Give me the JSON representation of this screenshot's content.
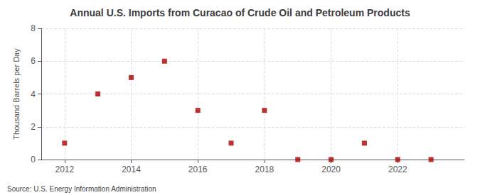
{
  "chart_data": {
    "type": "scatter",
    "title": "Annual U.S. Imports from Curacao of Crude Oil and Petroleum Products",
    "ylabel": "Thousand Barrels per Day",
    "annotations": [
      "Source: U.S. Energy Information Administration"
    ],
    "x": [
      2012,
      2013,
      2014,
      2015,
      2016,
      2017,
      2018,
      2019,
      2020,
      2021,
      2022,
      2023
    ],
    "values": [
      1,
      4,
      5,
      6,
      3,
      1,
      3,
      0,
      0,
      1,
      0,
      0
    ],
    "color": "#aa0000",
    "marker": "square",
    "xlim": [
      2011.3,
      2024.0
    ],
    "xticks": [
      2012,
      2014,
      2016,
      2018,
      2020,
      2022
    ],
    "ylim": [
      0,
      8
    ],
    "yticks": [
      0,
      2,
      4,
      6,
      8
    ],
    "grid": true
  }
}
